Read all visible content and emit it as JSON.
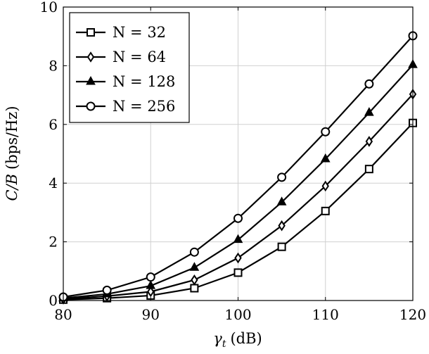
{
  "chart_data": {
    "type": "line",
    "title": "",
    "xlabel": "γ",
    "xlabel_sub": "t",
    "xlabel_unit": "(dB)",
    "ylabel": "C/B",
    "ylabel_unit": "(bps/Hz)",
    "xlim": [
      80,
      120
    ],
    "ylim": [
      0,
      10
    ],
    "xticks": [
      80,
      90,
      100,
      110,
      120
    ],
    "yticks": [
      0,
      2,
      4,
      6,
      8,
      10
    ],
    "grid": true,
    "legend_position": "top-left",
    "x": [
      80,
      85,
      90,
      95,
      100,
      105,
      110,
      115,
      120
    ],
    "series": [
      {
        "name": "N = 32",
        "marker": "square",
        "values": [
          0.03,
          0.08,
          0.17,
          0.42,
          0.95,
          1.83,
          3.05,
          4.48,
          6.05
        ]
      },
      {
        "name": "N = 64",
        "marker": "diamond",
        "values": [
          0.05,
          0.15,
          0.3,
          0.7,
          1.45,
          2.55,
          3.9,
          5.42,
          7.03
        ]
      },
      {
        "name": "N = 128",
        "marker": "triangle",
        "values": [
          0.08,
          0.22,
          0.5,
          1.12,
          2.07,
          3.35,
          4.82,
          6.4,
          8.03
        ]
      },
      {
        "name": "N = 256",
        "marker": "circle",
        "values": [
          0.12,
          0.35,
          0.8,
          1.65,
          2.8,
          4.2,
          5.75,
          7.38,
          9.02
        ]
      }
    ],
    "colors": {
      "line": "#000000",
      "grid": "#d0d0d0"
    }
  }
}
